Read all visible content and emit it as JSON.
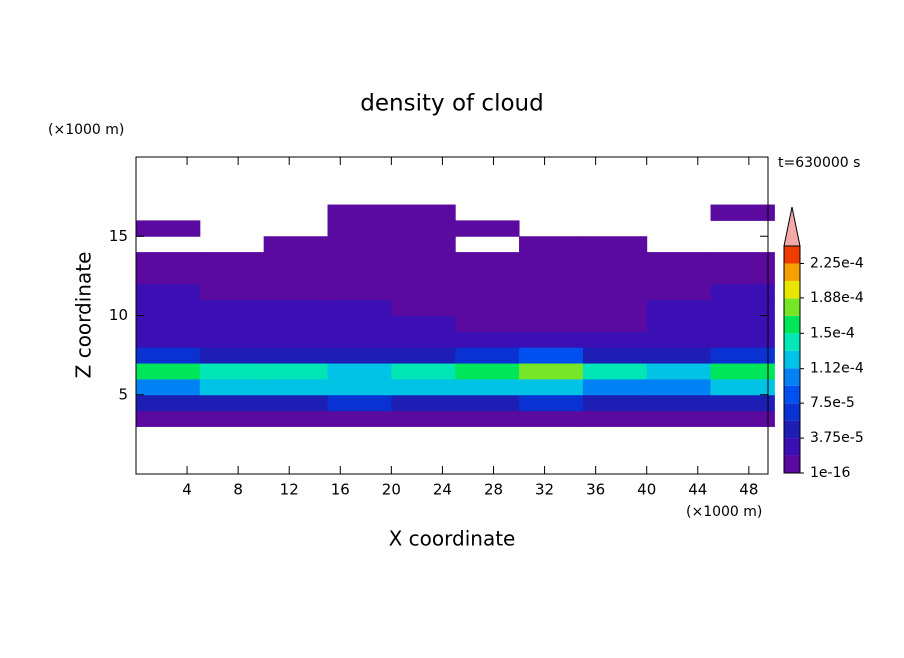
{
  "chart_data": {
    "type": "contour",
    "title": "density of cloud",
    "x_label": "X coordinate",
    "y_label": "Z coordinate",
    "x_unit": "(×1000 m)",
    "y_unit": "(×1000 m)",
    "time_label": "t=630000 s",
    "xlim": [
      0,
      49.5
    ],
    "ylim": [
      0,
      20
    ],
    "xticks": [
      4,
      8,
      12,
      16,
      20,
      24,
      28,
      32,
      36,
      40,
      44,
      48
    ],
    "yticks": [
      5,
      10,
      15
    ],
    "x": [
      2.5,
      7.5,
      12.5,
      17.5,
      22.5,
      27.5,
      32.5,
      37.5,
      42.5,
      47.5
    ],
    "z": [
      3.5,
      4.5,
      5.5,
      6.5,
      7.5,
      8.5,
      9.5,
      10.5,
      11.5,
      12.5,
      13.5,
      14.5,
      15.5,
      16.5
    ],
    "values": [
      [
        1.5e-05,
        1.5e-05,
        1.5e-05,
        1.5e-05,
        1.5e-05,
        1.5e-05,
        1.5e-05,
        1.5e-05,
        1.5e-05,
        1.5e-05
      ],
      [
        5e-05,
        5.5e-05,
        5e-05,
        6e-05,
        5e-05,
        5e-05,
        6e-05,
        5.5e-05,
        5e-05,
        5e-05
      ],
      [
        0.00011,
        0.00012,
        0.00012,
        0.000115,
        0.00012,
        0.00013,
        0.000125,
        0.00011,
        0.000105,
        0.00012
      ],
      [
        0.00016,
        0.000145,
        0.00014,
        0.00013,
        0.000145,
        0.000165,
        0.00017,
        0.000135,
        0.00013,
        0.00016
      ],
      [
        6e-05,
        5e-05,
        4e-05,
        4e-05,
        4.5e-05,
        7e-05,
        7.5e-05,
        4e-05,
        5e-05,
        6.5e-05
      ],
      [
        3e-05,
        3.5e-05,
        3e-05,
        2.5e-05,
        3e-05,
        2.5e-05,
        2e-05,
        2.5e-05,
        3e-05,
        3e-05
      ],
      [
        2.5e-05,
        3e-05,
        2.5e-05,
        2e-05,
        2e-05,
        1.5e-05,
        1.2e-05,
        1.5e-05,
        2e-05,
        2.5e-05
      ],
      [
        2e-05,
        2e-05,
        2e-05,
        1.9e-05,
        1.5e-05,
        1e-05,
        8e-06,
        1e-05,
        1.9e-05,
        2e-05
      ],
      [
        1.9e-05,
        1.5e-05,
        1e-05,
        1e-05,
        8e-06,
        8e-06,
        6e-06,
        6e-06,
        1e-05,
        1.9e-05
      ],
      [
        8e-06,
        6e-06,
        6e-06,
        5e-06,
        5e-06,
        5e-06,
        5e-06,
        5e-06,
        5e-06,
        6e-06
      ],
      [
        4e-06,
        3e-06,
        3e-06,
        3e-06,
        3e-06,
        3e-06,
        3e-06,
        3e-06,
        3e-06,
        3e-06
      ],
      [
        null,
        null,
        2e-06,
        2e-06,
        2e-06,
        null,
        2e-06,
        2e-06,
        null,
        null
      ],
      [
        1e-06,
        null,
        null,
        2e-06,
        2e-06,
        2e-06,
        null,
        null,
        null,
        null
      ],
      [
        null,
        null,
        null,
        2e-06,
        2e-06,
        null,
        null,
        null,
        null,
        1e-06
      ]
    ],
    "levels": [
      1e-16,
      1.875e-05,
      3.75e-05,
      5.625e-05,
      7.5e-05,
      9.375e-05,
      0.0001125,
      0.00013125,
      0.00015,
      0.00016875,
      0.0001875,
      0.00020625,
      0.000225,
      0.00024375
    ],
    "colors": [
      "#5a0a9e",
      "#3c0fb4",
      "#1e1eb4",
      "#0a32d2",
      "#0050f0",
      "#0082f5",
      "#00c3e6",
      "#00e6b4",
      "#00e65a",
      "#78e628",
      "#e6e600",
      "#f5a000",
      "#f03c00"
    ],
    "extend_color": "#f4a8a8",
    "colorbar_ticks": [
      {
        "value": 1e-16,
        "label": "1e-16"
      },
      {
        "value": 3.75e-05,
        "label": "3.75e-5"
      },
      {
        "value": 7.5e-05,
        "label": "7.5e-5"
      },
      {
        "value": 0.000112,
        "label": "1.12e-4"
      },
      {
        "value": 0.00015,
        "label": "1.5e-4"
      },
      {
        "value": 0.000188,
        "label": "1.88e-4"
      },
      {
        "value": 0.000225,
        "label": "2.25e-4"
      }
    ]
  }
}
